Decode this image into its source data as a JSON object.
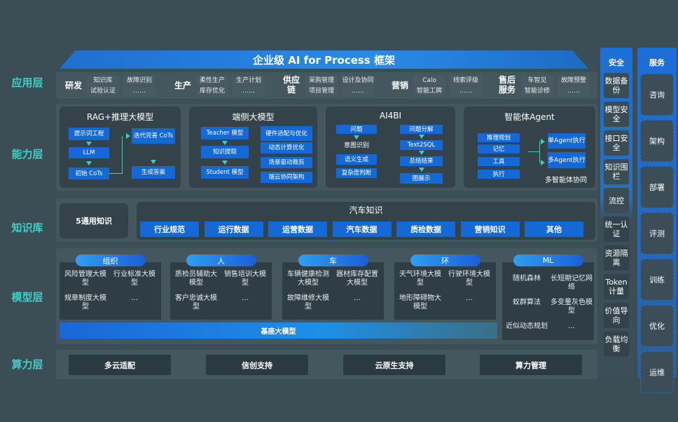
{
  "title": "企业级 AI for Process 框架",
  "layers": [
    "应用层",
    "能力层",
    "知识库",
    "模型层",
    "算力层"
  ],
  "app": [
    {
      "name": "研发",
      "items": [
        "知识库",
        "试验认证",
        "故障识别",
        "……"
      ]
    },
    {
      "name": "生产",
      "items": [
        "柔性生产",
        "库存优化",
        "生产计划",
        "……"
      ]
    },
    {
      "name": "供应链",
      "items": [
        "采购管理",
        "项目管理",
        "设计及协同",
        "……"
      ]
    },
    {
      "name": "营销",
      "items": [
        "Calo",
        "智能工牌",
        "线索评级",
        "……"
      ]
    },
    {
      "name": "售后服务",
      "items": [
        "车智见",
        "智能诊修",
        "故障预警",
        "……"
      ]
    }
  ],
  "capability": {
    "rag": {
      "title": "RAG+推理大模型",
      "steps": [
        "提示词工程",
        "LLM",
        "初始 CoTs",
        "迭代完善 CoTs",
        "生成答案"
      ]
    },
    "edge": {
      "title": "端侧大模型",
      "steps": [
        "Teacher 模型",
        "知识提取",
        "Student 模型"
      ],
      "features": [
        "硬件适配与优化",
        "动态计算优化",
        "场景驱动裁剪",
        "端云协同架构"
      ]
    },
    "ai4bi": {
      "title": "AI4BI",
      "left": [
        "问题",
        "意图识别",
        "语义生成",
        "复杂度判断"
      ],
      "right": [
        "问题分解",
        "Text2SQL",
        "总结结果",
        "图展示"
      ]
    },
    "agent": {
      "title": "智能体Agent",
      "parts": [
        "推理规划",
        "记忆",
        "工具",
        "执行"
      ],
      "exec": [
        "单Agent执行",
        "多Agent执行"
      ],
      "footer": "多智能体协同"
    }
  },
  "knowledge": {
    "general": "5通用知识",
    "auto_title": "汽车知识",
    "auto_items": [
      "行业规范",
      "运行数据",
      "运营数据",
      "汽车数据",
      "质检数据",
      "营销知识",
      "其他"
    ]
  },
  "models": [
    {
      "name": "组织",
      "items": [
        "风险管理大模型",
        "行业标准大模型",
        "规章制度大模型",
        "…"
      ]
    },
    {
      "name": "人",
      "items": [
        "质检员辅助大模型",
        "销售培训大模型",
        "客户忠诚大模型",
        "…"
      ]
    },
    {
      "name": "车",
      "items": [
        "车辆健康检测大模型",
        "器材库存配置大模型",
        "故障维修大模型",
        "…"
      ]
    },
    {
      "name": "环",
      "items": [
        "天气环境大模型",
        "行驶环境大模型",
        "地形障碍物大模型",
        "…"
      ]
    },
    {
      "name": "ML",
      "items": [
        "随机森林",
        "长短期记忆网络",
        "蚁群算法",
        "多变量灰色模型",
        "近似动态规划",
        "…"
      ]
    }
  ],
  "base_model": "基座大模型",
  "compute": [
    "多云适配",
    "信创支持",
    "云原生支持",
    "算力管理"
  ],
  "security": {
    "title": "安全",
    "items": [
      "数据备份",
      "模型安全",
      "接口安全",
      "知识围栏",
      "流控",
      "统一认证",
      "资源隔离",
      "Token计量",
      "价值导向",
      "负载均衡"
    ]
  },
  "services": {
    "title": "服务",
    "items": [
      "咨询",
      "架构",
      "部署",
      "评测",
      "训练",
      "优化",
      "运维"
    ]
  },
  "colors": {
    "background": "#3b4d55",
    "accent_blue": "#1569d6",
    "layer_label": "#3fd0c8",
    "arrow": "#38d0c0"
  }
}
